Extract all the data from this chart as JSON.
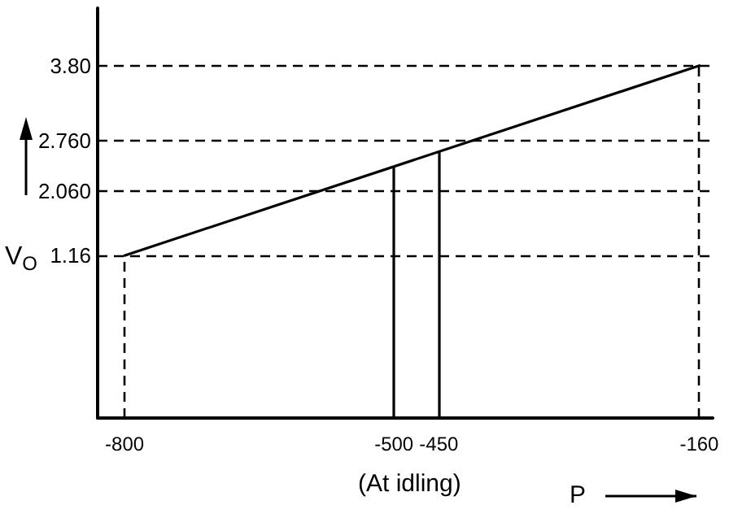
{
  "chart_data": {
    "type": "line",
    "xlabel": "P",
    "ylabel": "V$_{O}$",
    "x": [
      -800,
      -160
    ],
    "series": [
      {
        "color": "#000000",
        "values": [
          1.16,
          3.8
        ]
      }
    ],
    "xlim": [
      -830,
      -145
    ],
    "ylim": [
      -1.1,
      4.6
    ],
    "xticks": [
      -800,
      -500,
      -450,
      -160
    ],
    "yticks": [
      1.16,
      {
        "value": 2.06,
        "label": "2.060"
      },
      {
        "value": 2.76,
        "label": "2.760"
      },
      {
        "value": 3.8,
        "label": "3.80"
      }
    ],
    "ref_lines": [
      {
        "axis": "y",
        "value": 1.16,
        "line_style": "dashed"
      },
      {
        "axis": "y",
        "value": 2.06,
        "line_style": "dashed"
      },
      {
        "axis": "y",
        "value": 2.76,
        "line_style": "dashed"
      },
      {
        "axis": "y",
        "value": 3.8,
        "line_style": "dashed"
      },
      {
        "axis": "x",
        "value": -800,
        "line_style": "dashed"
      },
      {
        "axis": "x",
        "value": -160,
        "line_style": "dashed"
      },
      {
        "axis": "x",
        "value": -500,
        "line_style": "solid"
      },
      {
        "axis": "x",
        "value": -450,
        "line_style": "solid"
      }
    ],
    "annotations": [
      "(At idling)"
    ],
    "grid": false,
    "marker": "none",
    "line_style": "solid"
  }
}
